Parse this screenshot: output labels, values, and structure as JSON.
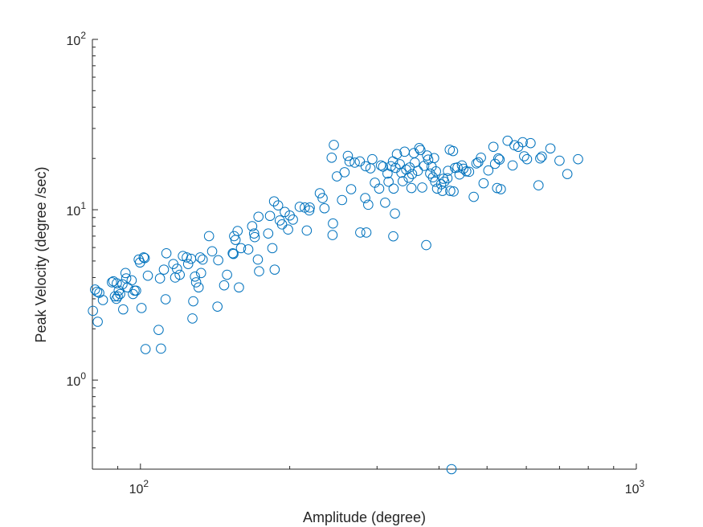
{
  "chart_data": {
    "type": "scatter",
    "title": "",
    "xlabel": "Amplitude (degree)",
    "ylabel": "Peak Velocity (degree /sec)",
    "xscale": "log",
    "yscale": "log",
    "xlim": [
      80,
      1000
    ],
    "ylim": [
      0.3,
      100
    ],
    "grid": false,
    "legend": "none",
    "x_ticks": [
      {
        "value": 100,
        "base": "10",
        "exp": "2"
      },
      {
        "value": 1000,
        "base": "10",
        "exp": "3"
      }
    ],
    "y_ticks": [
      {
        "value": 1,
        "base": "10",
        "exp": "0"
      },
      {
        "value": 10,
        "base": "10",
        "exp": "1"
      },
      {
        "value": 100,
        "base": "10",
        "exp": "2"
      }
    ],
    "marker_color": "#0072BD",
    "series": [
      {
        "marker": "circle-open",
        "points": [
          [
            80.2,
            2.55
          ],
          [
            81.0,
            3.4
          ],
          [
            81.8,
            3.3
          ],
          [
            82.0,
            2.2
          ],
          [
            82.6,
            3.25
          ],
          [
            84.0,
            2.95
          ],
          [
            87.6,
            3.75
          ],
          [
            88.2,
            3.8
          ],
          [
            88.8,
            3.1
          ],
          [
            89.4,
            3.0
          ],
          [
            89.6,
            3.7
          ],
          [
            90.0,
            3.1
          ],
          [
            90.4,
            3.35
          ],
          [
            91.0,
            3.2
          ],
          [
            92.0,
            3.65
          ],
          [
            92.3,
            2.6
          ],
          [
            93.3,
            4.25
          ],
          [
            93.6,
            3.95
          ],
          [
            94.2,
            3.5
          ],
          [
            96.0,
            3.85
          ],
          [
            96.6,
            3.2
          ],
          [
            97.3,
            3.35
          ],
          [
            98.0,
            3.35
          ],
          [
            99.2,
            5.1
          ],
          [
            99.8,
            4.9
          ],
          [
            100.5,
            2.65
          ],
          [
            101.5,
            5.25
          ],
          [
            102.0,
            5.2
          ],
          [
            102.4,
            1.52
          ],
          [
            103.5,
            4.1
          ],
          [
            108.8,
            1.97
          ],
          [
            109.5,
            3.95
          ],
          [
            110.0,
            1.53
          ],
          [
            111.5,
            4.45
          ],
          [
            112.4,
            2.98
          ],
          [
            112.8,
            5.55
          ],
          [
            116.5,
            4.8
          ],
          [
            117.5,
            4.0
          ],
          [
            118.5,
            4.5
          ],
          [
            120.0,
            4.15
          ],
          [
            121.8,
            5.35
          ],
          [
            124.0,
            5.25
          ],
          [
            124.8,
            4.8
          ],
          [
            126.5,
            5.15
          ],
          [
            127.3,
            2.3
          ],
          [
            127.8,
            2.9
          ],
          [
            128.8,
            4.05
          ],
          [
            129.5,
            3.75
          ],
          [
            131.0,
            3.5
          ],
          [
            132.0,
            5.25
          ],
          [
            132.5,
            4.25
          ],
          [
            133.5,
            5.1
          ],
          [
            137.5,
            7.0
          ],
          [
            139.5,
            5.7
          ],
          [
            143.0,
            2.7
          ],
          [
            143.5,
            5.05
          ],
          [
            147.5,
            3.6
          ],
          [
            149.5,
            4.15
          ],
          [
            153.5,
            5.55
          ],
          [
            154.0,
            5.5
          ],
          [
            154.5,
            7.0
          ],
          [
            155.5,
            6.65
          ],
          [
            157.0,
            7.5
          ],
          [
            158.0,
            3.5
          ],
          [
            159.5,
            5.95
          ],
          [
            165.0,
            5.85
          ],
          [
            168.0,
            8.0
          ],
          [
            169.5,
            7.25
          ],
          [
            170.0,
            6.9
          ],
          [
            172.5,
            5.1
          ],
          [
            173.0,
            9.1
          ],
          [
            173.5,
            4.35
          ],
          [
            181.0,
            7.25
          ],
          [
            182.5,
            9.2
          ],
          [
            184.5,
            5.95
          ],
          [
            186.0,
            11.2
          ],
          [
            186.5,
            4.45
          ],
          [
            189.5,
            10.6
          ],
          [
            191.0,
            8.65
          ],
          [
            193.0,
            8.2
          ],
          [
            195.5,
            9.7
          ],
          [
            198.5,
            7.65
          ],
          [
            200.0,
            9.25
          ],
          [
            203.0,
            8.75
          ],
          [
            209.5,
            10.4
          ],
          [
            214.5,
            10.3
          ],
          [
            216.5,
            7.55
          ],
          [
            219.0,
            9.9
          ],
          [
            219.5,
            10.3
          ],
          [
            230.0,
            12.5
          ],
          [
            233.0,
            11.7
          ],
          [
            235.0,
            10.2
          ],
          [
            243.0,
            20.2
          ],
          [
            244.5,
            8.3
          ],
          [
            245.5,
            24.0
          ],
          [
            244.0,
            7.1
          ],
          [
            249.0,
            15.7
          ],
          [
            255.0,
            11.4
          ],
          [
            258.0,
            16.6
          ],
          [
            262.0,
            20.7
          ],
          [
            264.0,
            19.2
          ],
          [
            266.0,
            13.2
          ],
          [
            270.5,
            18.9
          ],
          [
            277.0,
            19.2
          ],
          [
            277.5,
            7.35
          ],
          [
            284.0,
            11.7
          ],
          [
            284.5,
            18.0
          ],
          [
            285.5,
            7.35
          ],
          [
            288.0,
            10.7
          ],
          [
            291.0,
            17.5
          ],
          [
            293.5,
            19.8
          ],
          [
            297.0,
            14.4
          ],
          [
            303.0,
            13.3
          ],
          [
            305.5,
            18.2
          ],
          [
            308.5,
            17.9
          ],
          [
            311.5,
            11.0
          ],
          [
            315.0,
            16.3
          ],
          [
            316.5,
            14.6
          ],
          [
            320.0,
            18.0
          ],
          [
            323.0,
            19.2
          ],
          [
            323.5,
            6.98
          ],
          [
            324.0,
            13.3
          ],
          [
            326.0,
            9.5
          ],
          [
            327.0,
            17.6
          ],
          [
            329.0,
            21.2
          ],
          [
            333.5,
            18.5
          ],
          [
            336.0,
            16.5
          ],
          [
            338.0,
            14.7
          ],
          [
            341.0,
            21.9
          ],
          [
            343.5,
            17.2
          ],
          [
            347.5,
            15.4
          ],
          [
            349.0,
            17.7
          ],
          [
            352.0,
            13.4
          ],
          [
            353.0,
            16.2
          ],
          [
            356.0,
            21.5
          ],
          [
            357.5,
            18.9
          ],
          [
            362.5,
            16.9
          ],
          [
            365.0,
            23.0
          ],
          [
            367.0,
            22.4
          ],
          [
            370.0,
            13.5
          ],
          [
            373.5,
            18.1
          ],
          [
            377.0,
            6.2
          ],
          [
            378.5,
            20.8
          ],
          [
            380.5,
            19.7
          ],
          [
            384.0,
            16.3
          ],
          [
            386.5,
            17.9
          ],
          [
            389.0,
            15.5
          ],
          [
            391.0,
            20.1
          ],
          [
            393.0,
            14.6
          ],
          [
            394.5,
            16.8
          ],
          [
            396.5,
            13.3
          ],
          [
            404.0,
            14.1
          ],
          [
            406.5,
            12.9
          ],
          [
            408.0,
            15.2
          ],
          [
            410.0,
            14.6
          ],
          [
            416.0,
            15.3
          ],
          [
            417.0,
            16.9
          ],
          [
            420.5,
            22.5
          ],
          [
            421.5,
            12.9
          ],
          [
            424.0,
            0.3
          ],
          [
            427.0,
            22.1
          ],
          [
            428.0,
            12.8
          ],
          [
            431.0,
            17.6
          ],
          [
            436.0,
            17.7
          ],
          [
            440.0,
            16.1
          ],
          [
            445.0,
            18.2
          ],
          [
            448.0,
            17.4
          ],
          [
            454.0,
            16.8
          ],
          [
            460.0,
            16.7
          ],
          [
            470.0,
            11.9
          ],
          [
            476.0,
            18.7
          ],
          [
            480.0,
            19.0
          ],
          [
            486.0,
            20.2
          ],
          [
            492.0,
            14.3
          ],
          [
            503.0,
            17.0
          ],
          [
            515.0,
            23.4
          ],
          [
            519.0,
            18.6
          ],
          [
            524.0,
            13.4
          ],
          [
            527.0,
            20.0
          ],
          [
            530.0,
            19.7
          ],
          [
            533.0,
            13.2
          ],
          [
            550.0,
            25.4
          ],
          [
            563.0,
            18.2
          ],
          [
            568.0,
            23.9
          ],
          [
            578.0,
            23.4
          ],
          [
            590.0,
            24.9
          ],
          [
            594.0,
            20.6
          ],
          [
            602.0,
            19.8
          ],
          [
            612.0,
            24.6
          ],
          [
            635.0,
            13.9
          ],
          [
            640.0,
            20.0
          ],
          [
            645.0,
            20.5
          ],
          [
            671.0,
            22.9
          ],
          [
            700.0,
            19.4
          ],
          [
            726.0,
            16.2
          ],
          [
            763.0,
            19.8
          ]
        ]
      }
    ]
  }
}
